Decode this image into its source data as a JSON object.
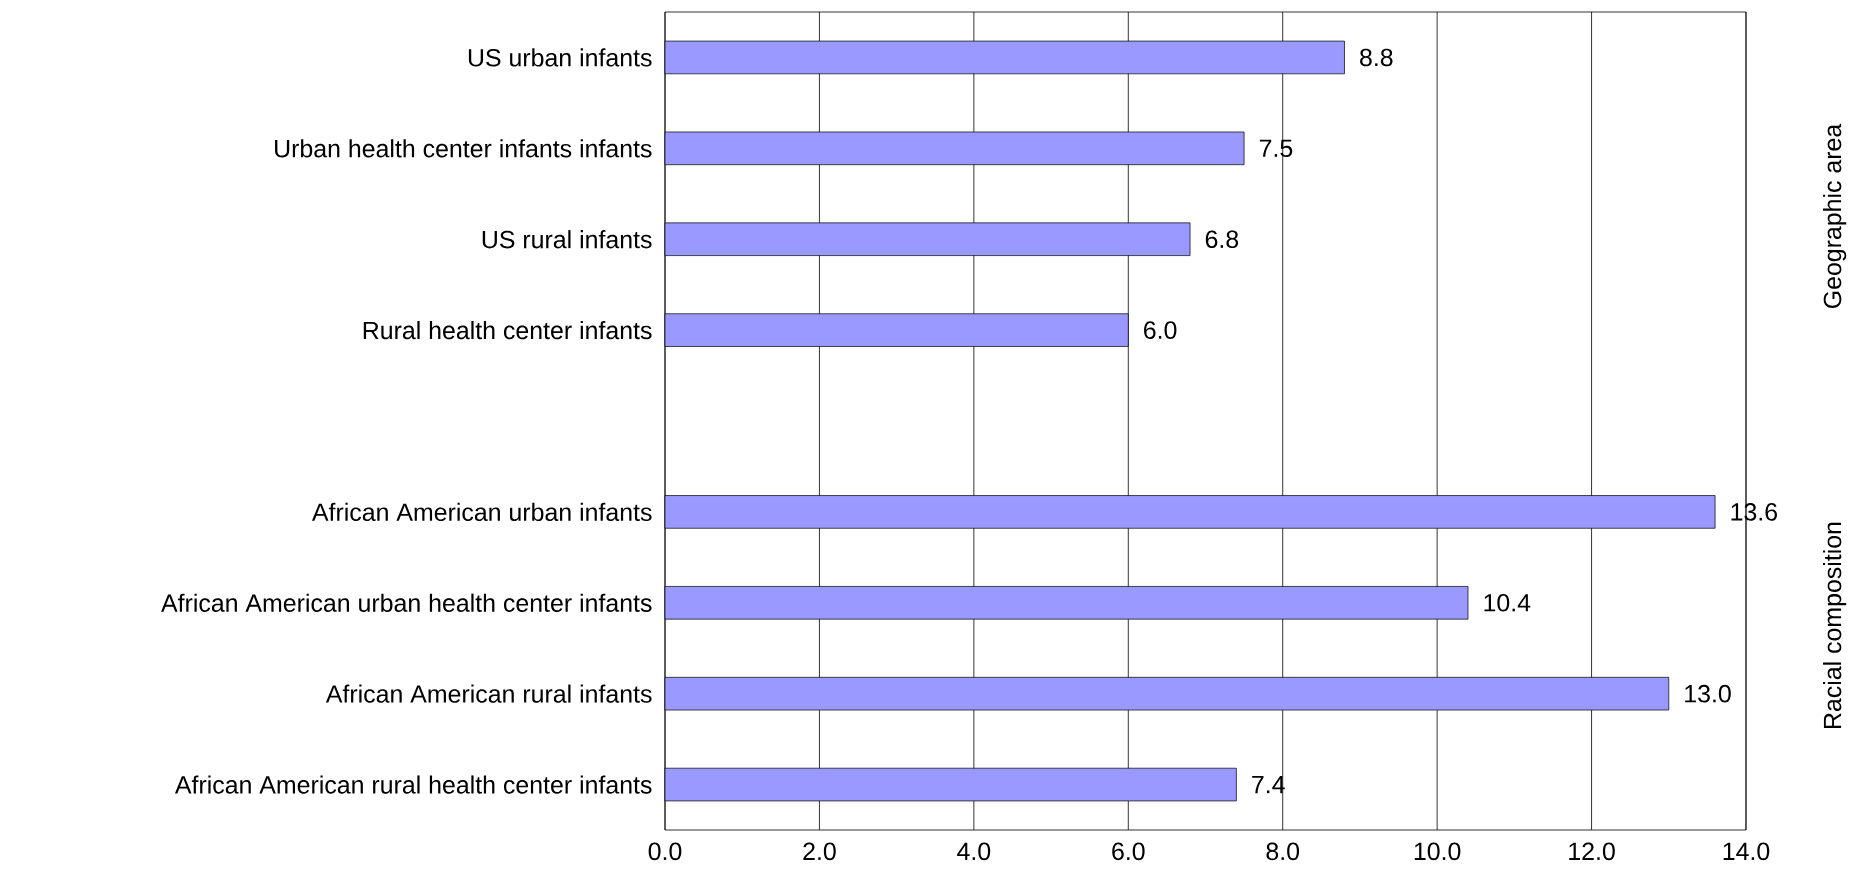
{
  "chart_data": {
    "type": "bar",
    "orientation": "horizontal",
    "categories": [
      "US urban infants",
      "Urban health center infants infants",
      "US rural infants",
      "Rural health center infants",
      null,
      "African American urban infants",
      "African American urban health center infants",
      "African American rural infants",
      "African American rural health center infants"
    ],
    "values": [
      8.8,
      7.5,
      6.8,
      6.0,
      null,
      13.6,
      10.4,
      13.0,
      7.4
    ],
    "value_labels": [
      "8.8",
      "7.5",
      "6.8",
      "6.0",
      null,
      "13.6",
      "10.4",
      "13.0",
      "7.4"
    ],
    "color": "#9999ff",
    "xlim": [
      0,
      14
    ],
    "xticks": [
      {
        "value": 0,
        "label": "0.0"
      },
      {
        "value": 2,
        "label": "2.0"
      },
      {
        "value": 4,
        "label": "4.0"
      },
      {
        "value": 6,
        "label": "6.0"
      },
      {
        "value": 8,
        "label": "8.0"
      },
      {
        "value": 10,
        "label": "10.0"
      },
      {
        "value": 12,
        "label": "12.0"
      },
      {
        "value": 14,
        "label": "14.0"
      }
    ],
    "grid": "x",
    "annotations": [
      "Geographic area",
      "Racial composition"
    ]
  }
}
